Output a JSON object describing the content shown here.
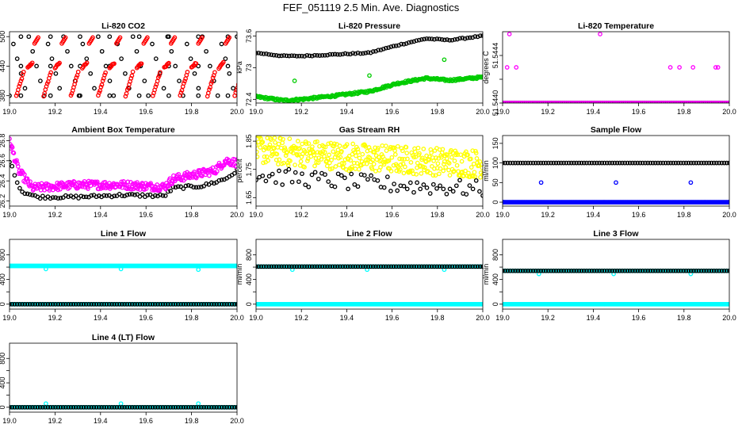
{
  "title": "FEF_051119  2.5 Min. Ave. Diagnostics",
  "x_ticks": [
    "19.0",
    "19.2",
    "19.4",
    "19.6",
    "19.8",
    "20.0"
  ],
  "chart_data": [
    {
      "id": "co2",
      "type": "scatter",
      "title": "Li-820 CO2",
      "ylabel": "Licor ppm",
      "xlim": [
        19.0,
        20.0
      ],
      "ylim": [
        365,
        510
      ],
      "yticks": [
        380,
        440,
        500
      ],
      "series": [
        {
          "name": "black",
          "color": "#000000",
          "pattern": "co2_black"
        },
        {
          "name": "red",
          "color": "#ff0000",
          "pattern": "co2_red"
        }
      ]
    },
    {
      "id": "pressure",
      "type": "scatter",
      "title": "Li-820 Pressure",
      "ylabel": "kPa",
      "xlim": [
        19.0,
        20.0
      ],
      "ylim": [
        72.33,
        73.68
      ],
      "yticks": [
        72.4,
        73.0,
        73.6
      ],
      "series": [
        {
          "name": "black",
          "color": "#000000",
          "pattern": "pres_black"
        },
        {
          "name": "green",
          "color": "#00cc00",
          "pattern": "pres_green"
        }
      ]
    },
    {
      "id": "temp820",
      "type": "scatter",
      "title": "Li-820 Temperature",
      "ylabel": "degrees C",
      "xlim": [
        19.0,
        20.0
      ],
      "ylim": [
        51.544,
        51.5446
      ],
      "yticks": [
        51.544,
        51.5442,
        51.5444
      ],
      "tick_labels": [
        "51.5440",
        "",
        "51.5444"
      ],
      "series": [
        {
          "name": "black",
          "color": "#000000",
          "pattern": "t820_black"
        },
        {
          "name": "magenta",
          "color": "#ff00ff",
          "pattern": "t820_mag"
        }
      ]
    },
    {
      "id": "ambient",
      "type": "scatter",
      "title": "Ambient Box Temperature",
      "ylabel": "degrees C",
      "xlim": [
        19.0,
        20.0
      ],
      "ylim": [
        26.15,
        26.85
      ],
      "yticks": [
        26.2,
        26.4,
        26.6,
        26.8
      ],
      "tick_labels": [
        "26.2",
        "26.4",
        "26.6",
        "26.8"
      ],
      "series": [
        {
          "name": "black",
          "color": "#000000",
          "pattern": "amb_black"
        },
        {
          "name": "magenta",
          "color": "#ff00ff",
          "pattern": "amb_mag"
        }
      ]
    },
    {
      "id": "rh",
      "type": "scatter",
      "title": "Gas Stream RH",
      "ylabel": "percent",
      "xlim": [
        19.0,
        20.0
      ],
      "ylim": [
        1.62,
        1.87
      ],
      "yticks": [
        1.65,
        1.75,
        1.85
      ],
      "series": [
        {
          "name": "yellow",
          "color": "#ffff00",
          "pattern": "rh_yellow"
        },
        {
          "name": "black",
          "color": "#000000",
          "pattern": "rh_black"
        }
      ]
    },
    {
      "id": "sample",
      "type": "scatter",
      "title": "Sample Flow",
      "ylabel": "ml/min",
      "xlim": [
        19.0,
        20.0
      ],
      "ylim": [
        -10,
        170
      ],
      "yticks": [
        0,
        50,
        100,
        150
      ],
      "series": [
        {
          "name": "black",
          "color": "#000000",
          "pattern": "const",
          "value": 100
        },
        {
          "name": "blue",
          "color": "#0000ff",
          "pattern": "const",
          "value": 0,
          "dense": true,
          "spikes": [
            [
              19.17,
              50
            ],
            [
              19.5,
              50
            ],
            [
              19.83,
              50
            ]
          ]
        }
      ]
    },
    {
      "id": "line1",
      "type": "scatter",
      "title": "Line 1 Flow",
      "ylabel": "ml/min",
      "xlim": [
        19.0,
        20.0
      ],
      "ylim": [
        -80,
        1050
      ],
      "yticks": [
        0,
        200,
        400,
        600,
        800
      ],
      "tick_labels": [
        "0",
        "",
        "400",
        "",
        "800"
      ],
      "series": [
        {
          "name": "cyan",
          "color": "#00ffff",
          "pattern": "const",
          "value": 620,
          "dense": true,
          "spikes": [
            [
              19.16,
              570
            ],
            [
              19.49,
              570
            ],
            [
              19.83,
              560
            ]
          ]
        },
        {
          "name": "black",
          "color": "#000000",
          "pattern": "const",
          "value": 0
        },
        {
          "name": "cyan-low",
          "color": "#00ffff",
          "pattern": "const",
          "value": 0,
          "dense": true,
          "underlay": true
        }
      ]
    },
    {
      "id": "line2",
      "type": "scatter",
      "title": "Line 2 Flow",
      "ylabel": "ml/min",
      "xlim": [
        19.0,
        20.0
      ],
      "ylim": [
        -80,
        1050
      ],
      "yticks": [
        0,
        200,
        400,
        600,
        800
      ],
      "tick_labels": [
        "0",
        "",
        "400",
        "",
        "800"
      ],
      "series": [
        {
          "name": "cyan",
          "color": "#00ffff",
          "pattern": "const",
          "value": 0,
          "dense": true
        },
        {
          "name": "cyan-high",
          "color": "#00ffff",
          "pattern": "const",
          "value": 610,
          "dense": true,
          "underlay": true,
          "spikes": [
            [
              19.16,
              560
            ],
            [
              19.49,
              560
            ],
            [
              19.83,
              560
            ]
          ]
        },
        {
          "name": "black",
          "color": "#000000",
          "pattern": "const",
          "value": 610
        }
      ]
    },
    {
      "id": "line3",
      "type": "scatter",
      "title": "Line 3 Flow",
      "ylabel": "ml/min",
      "xlim": [
        19.0,
        20.0
      ],
      "ylim": [
        -80,
        1050
      ],
      "yticks": [
        0,
        200,
        400,
        600,
        800
      ],
      "tick_labels": [
        "0",
        "",
        "400",
        "",
        "800"
      ],
      "series": [
        {
          "name": "cyan",
          "color": "#00ffff",
          "pattern": "const",
          "value": 0,
          "dense": true
        },
        {
          "name": "cyan-high",
          "color": "#00ffff",
          "pattern": "const",
          "value": 540,
          "dense": true,
          "underlay": true,
          "spikes": [
            [
              19.16,
              490
            ],
            [
              19.49,
              490
            ],
            [
              19.83,
              490
            ]
          ]
        },
        {
          "name": "black",
          "color": "#000000",
          "pattern": "const",
          "value": 540
        }
      ]
    },
    {
      "id": "line4",
      "type": "scatter",
      "title": "Line 4 (LT) Flow",
      "ylabel": "ml/min",
      "xlim": [
        19.0,
        20.0
      ],
      "ylim": [
        -80,
        1050
      ],
      "yticks": [
        0,
        200,
        400,
        600,
        800
      ],
      "tick_labels": [
        "0",
        "",
        "400",
        "",
        "800"
      ],
      "series": [
        {
          "name": "cyan",
          "color": "#00ffff",
          "pattern": "const",
          "value": 0,
          "dense": true,
          "spikes": [
            [
              19.16,
              60
            ],
            [
              19.49,
              60
            ],
            [
              19.83,
              60
            ]
          ]
        },
        {
          "name": "black",
          "color": "#000000",
          "pattern": "const",
          "value": 0
        }
      ]
    }
  ]
}
